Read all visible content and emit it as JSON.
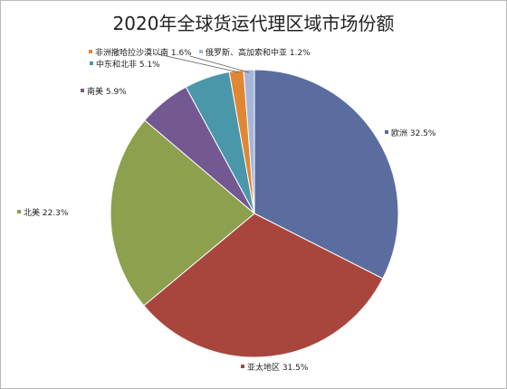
{
  "chart_data": {
    "type": "pie",
    "title": "2020年全球货运代理区域市场份额",
    "series": [
      {
        "name": "欧洲",
        "value": 32.5,
        "label": "欧洲 32.5%",
        "color": "#5b6c9f"
      },
      {
        "name": "亚太地区",
        "value": 31.5,
        "label": "亚太地区 31.5%",
        "color": "#a8463e"
      },
      {
        "name": "北美",
        "value": 22.3,
        "label": "北美 22.3%",
        "color": "#8ca04e"
      },
      {
        "name": "南美",
        "value": 5.9,
        "label": "南美 5.9%",
        "color": "#745891"
      },
      {
        "name": "中东和北非",
        "value": 5.1,
        "label": "中东和北非 5.1%",
        "color": "#4a97a9"
      },
      {
        "name": "非洲撒哈拉沙漠以南",
        "value": 1.6,
        "label": "非洲撒哈拉沙漠以南 1.6%",
        "color": "#df8733"
      },
      {
        "name": "俄罗斯、高加索和中亚",
        "value": 1.2,
        "label": "俄罗斯、高加索和中亚 1.2%",
        "color": "#a6b6d9"
      }
    ],
    "legend": "none",
    "data_labels": "outside"
  }
}
